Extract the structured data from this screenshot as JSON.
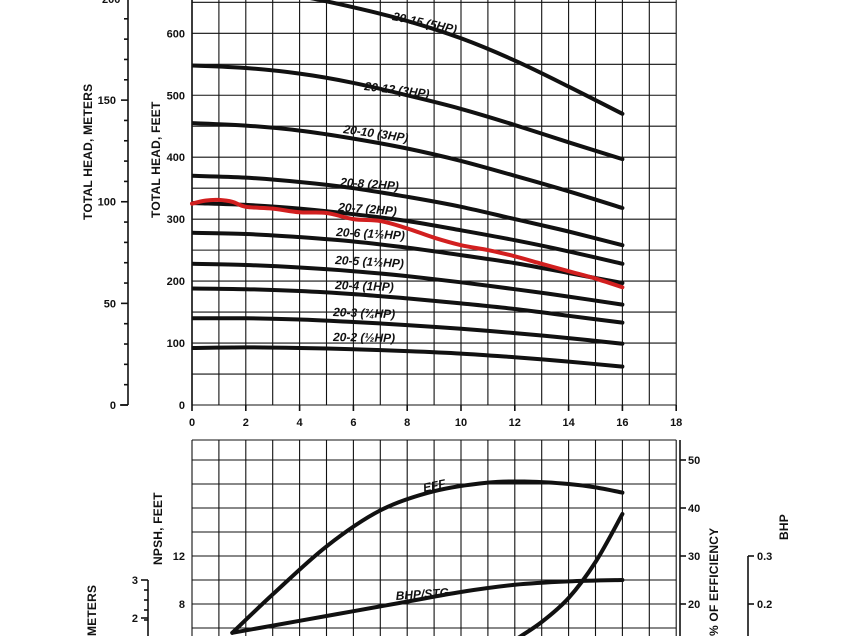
{
  "chart_data": [
    {
      "type": "line",
      "title": "",
      "xlabel": "",
      "ylabel": "TOTAL HEAD, FEET",
      "ylabel_secondary": "TOTAL HEAD, METERS",
      "xlim": [
        0,
        18
      ],
      "ylim": [
        0,
        650
      ],
      "xticks": [
        "0",
        "2",
        "4",
        "6",
        "8",
        "10",
        "12",
        "14",
        "16",
        "18"
      ],
      "yticks_feet": [
        "100",
        "200",
        "300",
        "400",
        "500",
        "600"
      ],
      "yticks_meters": [
        "0",
        "50",
        "100",
        "150"
      ],
      "grid": true,
      "series": [
        {
          "name": "20-15 (5HP)",
          "x": [
            0,
            2,
            4,
            6,
            8,
            10,
            12,
            14,
            16
          ],
          "y": [
            680,
            672,
            660,
            642,
            620,
            592,
            556,
            514,
            470
          ]
        },
        {
          "name": "20-12 (3HP)",
          "x": [
            0,
            2,
            4,
            6,
            8,
            10,
            12,
            14,
            16
          ],
          "y": [
            548,
            544,
            535,
            520,
            500,
            478,
            452,
            424,
            397
          ]
        },
        {
          "name": "20-10 (3HP)",
          "x": [
            0,
            2,
            4,
            6,
            8,
            10,
            12,
            14,
            16
          ],
          "y": [
            455,
            451,
            443,
            430,
            414,
            394,
            370,
            345,
            318
          ]
        },
        {
          "name": "20-8 (2HP)",
          "x": [
            0,
            2,
            4,
            6,
            8,
            10,
            12,
            14,
            16
          ],
          "y": [
            370,
            367,
            360,
            350,
            336,
            320,
            300,
            280,
            258
          ]
        },
        {
          "name": "20-7 (2HP)",
          "x": [
            0,
            2,
            4,
            6,
            8,
            10,
            12,
            14,
            16
          ],
          "y": [
            326,
            323,
            317,
            308,
            297,
            282,
            266,
            248,
            228
          ]
        },
        {
          "name": "20-6 (1½HP)",
          "x": [
            0,
            2,
            4,
            6,
            8,
            10,
            12,
            14,
            16
          ],
          "y": [
            278,
            276,
            271,
            264,
            254,
            242,
            229,
            213,
            197
          ]
        },
        {
          "name": "20-5 (1½HP)",
          "x": [
            0,
            2,
            4,
            6,
            8,
            10,
            12,
            14,
            16
          ],
          "y": [
            228,
            226,
            222,
            216,
            208,
            198,
            187,
            175,
            162
          ]
        },
        {
          "name": "20-4 (1HP)",
          "x": [
            0,
            2,
            4,
            6,
            8,
            10,
            12,
            14,
            16
          ],
          "y": [
            188,
            187,
            184,
            179,
            172,
            164,
            155,
            144,
            133
          ]
        },
        {
          "name": "20-3 (¾HP)",
          "x": [
            0,
            2,
            4,
            6,
            8,
            10,
            12,
            14,
            16
          ],
          "y": [
            140,
            140,
            138,
            134,
            129,
            123,
            116,
            108,
            99
          ]
        },
        {
          "name": "20-2 (½HP)",
          "x": [
            0,
            2,
            4,
            6,
            8,
            10,
            12,
            14,
            16
          ],
          "y": [
            92,
            93,
            92,
            90,
            87,
            83,
            77,
            70,
            62
          ]
        }
      ],
      "highlight": {
        "color": "#d21f1f",
        "x": [
          0,
          0.5,
          1,
          1.5,
          2,
          3,
          4,
          5,
          6,
          7,
          8,
          9,
          10,
          11,
          12,
          13,
          14,
          15,
          16
        ],
        "y": [
          325,
          330,
          331,
          328,
          320,
          317,
          311,
          310,
          300,
          297,
          285,
          270,
          258,
          250,
          240,
          228,
          216,
          204,
          190
        ]
      }
    },
    {
      "type": "line",
      "title": "",
      "ylabel_left": "NPSH, FEET",
      "ylabel_left2": "METERS",
      "ylabel_right": "% OF EFFICIENCY",
      "ylabel_right2": "BHP",
      "xlim": [
        0,
        18
      ],
      "eff_ticks": [
        "20",
        "30",
        "40",
        "50"
      ],
      "npsh_ticks": [
        "8",
        "12"
      ],
      "npsh_m_ticks": [
        "2",
        "3"
      ],
      "bhp_ticks": [
        "0.2",
        "0.3"
      ],
      "grid": true,
      "series": [
        {
          "name": "EFF",
          "x": [
            1.5,
            3,
            5,
            7,
            9,
            11,
            12.5,
            14,
            15,
            16
          ],
          "y": [
            14,
            22,
            32,
            39.5,
            43.5,
            45.3,
            45.5,
            45,
            44.3,
            43.2
          ]
        },
        {
          "name": "BHP/STG",
          "x": [
            1.5,
            4,
            6,
            8,
            10,
            12,
            14,
            16
          ],
          "y": [
            14,
            16.5,
            18.5,
            20.5,
            22.5,
            24,
            24.7,
            25
          ]
        },
        {
          "name": "NPSH",
          "x": [
            12,
            13,
            14,
            15,
            16
          ],
          "y": [
            5,
            6.5,
            8.5,
            11.5,
            15.5
          ]
        }
      ]
    }
  ],
  "labels": {
    "c20_15": "20-15 (5HP)",
    "c20_12": "20-12 (3HP)",
    "c20_10": "20-10 (3HP)",
    "c20_8": "20-8 (2HP)",
    "c20_7": "20-7 (2HP)",
    "c20_6": "20-6 (1½HP)",
    "c20_5": "20-5 (1½HP)",
    "c20_4": "20-4 (1HP)",
    "c20_3": "20-3 (¾HP)",
    "c20_2": "20-2 (½HP)",
    "eff": "EFF",
    "bhp": "BHP/STG",
    "head_feet": "TOTAL HEAD, FEET",
    "head_meters": "TOTAL HEAD, METERS",
    "npsh_feet": "NPSH, FEET",
    "npsh_meters": "METERS",
    "pct_eff": "% OF EFFICIENCY",
    "bhp_axis": "BHP",
    "top_meter_partial": "200"
  },
  "ticks": {
    "x": [
      "0",
      "2",
      "4",
      "6",
      "8",
      "10",
      "12",
      "14",
      "16",
      "18"
    ],
    "feet": [
      "100",
      "200",
      "300",
      "400",
      "500",
      "600"
    ],
    "meters": [
      "0",
      "50",
      "100",
      "150"
    ],
    "feet_zero": "0",
    "eff": [
      "20",
      "30",
      "40",
      "50"
    ],
    "npsh": [
      "8",
      "12"
    ],
    "npsh_m": [
      "2",
      "3"
    ],
    "bhp": [
      "0.2",
      "0.3"
    ]
  }
}
